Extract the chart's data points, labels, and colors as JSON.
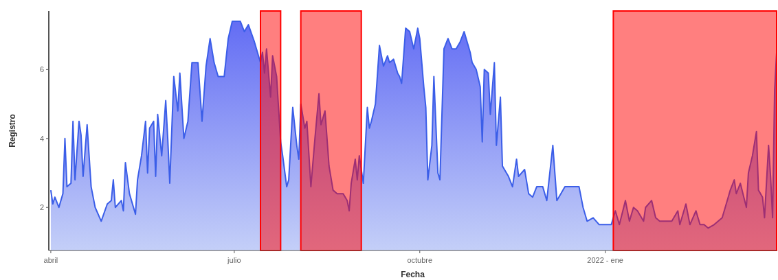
{
  "chart_data": {
    "type": "area",
    "xlabel": "Fecha",
    "ylabel": "Registro",
    "xlim": [
      "2021-03-31",
      "2022-03-27"
    ],
    "xticks": [
      {
        "value": "2021-04-01",
        "label": "abril"
      },
      {
        "value": "2021-07-01",
        "label": "julio"
      },
      {
        "value": "2021-10-01",
        "label": "octubre"
      },
      {
        "value": "2022-01-01",
        "label": "2022 - ene"
      }
    ],
    "ylim": [
      0.75,
      7.7
    ],
    "yticks": [
      2,
      4,
      6
    ],
    "grid": false,
    "bands": [
      {
        "axis": "x",
        "from": "2021-07-14",
        "to": "2021-07-24",
        "color": "#ff0000"
      },
      {
        "axis": "x",
        "from": "2021-08-03",
        "to": "2021-09-02",
        "color": "#ff0000"
      },
      {
        "axis": "x",
        "from": "2022-01-05",
        "to": "2022-03-27",
        "color": "#ff0000"
      }
    ],
    "series": [
      {
        "color": "#3b5ee8",
        "x": [
          "2021-04-01",
          "2021-04-02",
          "2021-04-03",
          "2021-04-05",
          "2021-04-07",
          "2021-04-08",
          "2021-04-09",
          "2021-04-11",
          "2021-04-12",
          "2021-04-13",
          "2021-04-15",
          "2021-04-16",
          "2021-04-17",
          "2021-04-19",
          "2021-04-21",
          "2021-04-23",
          "2021-04-26",
          "2021-04-29",
          "2021-05-01",
          "2021-05-02",
          "2021-05-03",
          "2021-05-06",
          "2021-05-07",
          "2021-05-08",
          "2021-05-10",
          "2021-05-13",
          "2021-05-14",
          "2021-05-16",
          "2021-05-18",
          "2021-05-19",
          "2021-05-20",
          "2021-05-22",
          "2021-05-23",
          "2021-05-24",
          "2021-05-26",
          "2021-05-28",
          "2021-05-29",
          "2021-05-30",
          "2021-06-01",
          "2021-06-03",
          "2021-06-04",
          "2021-06-06",
          "2021-06-08",
          "2021-06-10",
          "2021-06-13",
          "2021-06-15",
          "2021-06-17",
          "2021-06-19",
          "2021-06-21",
          "2021-06-23",
          "2021-06-26",
          "2021-06-28",
          "2021-06-30",
          "2021-07-04",
          "2021-07-06",
          "2021-07-08",
          "2021-07-11",
          "2021-07-14",
          "2021-07-15",
          "2021-07-16",
          "2021-07-17",
          "2021-07-19",
          "2021-07-20",
          "2021-07-22",
          "2021-07-24",
          "2021-07-25",
          "2021-07-27",
          "2021-07-28",
          "2021-07-30",
          "2021-08-01",
          "2021-08-02",
          "2021-08-03",
          "2021-08-05",
          "2021-08-06",
          "2021-08-08",
          "2021-08-10",
          "2021-08-12",
          "2021-08-13",
          "2021-08-15",
          "2021-08-17",
          "2021-08-19",
          "2021-08-21",
          "2021-08-24",
          "2021-08-26",
          "2021-08-27",
          "2021-08-28",
          "2021-08-30",
          "2021-08-31",
          "2021-09-01",
          "2021-09-03",
          "2021-09-05",
          "2021-09-06",
          "2021-09-07",
          "2021-09-09",
          "2021-09-11",
          "2021-09-13",
          "2021-09-15",
          "2021-09-16",
          "2021-09-18",
          "2021-09-20",
          "2021-09-21",
          "2021-09-22",
          "2021-09-24",
          "2021-09-26",
          "2021-09-28",
          "2021-09-30",
          "2021-10-01",
          "2021-10-03",
          "2021-10-04",
          "2021-10-05",
          "2021-10-07",
          "2021-10-08",
          "2021-10-10",
          "2021-10-11",
          "2021-10-13",
          "2021-10-15",
          "2021-10-17",
          "2021-10-19",
          "2021-10-21",
          "2021-10-23",
          "2021-10-26",
          "2021-10-27",
          "2021-10-29",
          "2021-10-31",
          "2021-11-01",
          "2021-11-02",
          "2021-11-04",
          "2021-11-05",
          "2021-11-07",
          "2021-11-08",
          "2021-11-10",
          "2021-11-11",
          "2021-11-14",
          "2021-11-16",
          "2021-11-18",
          "2021-11-19",
          "2021-11-22",
          "2021-11-24",
          "2021-11-26",
          "2021-11-28",
          "2021-12-01",
          "2021-12-03",
          "2021-12-06",
          "2021-12-08",
          "2021-12-10",
          "2021-12-12",
          "2021-12-15",
          "2021-12-19",
          "2021-12-21",
          "2021-12-23",
          "2021-12-26",
          "2021-12-29",
          "2022-01-01",
          "2022-01-04",
          "2022-01-06",
          "2022-01-08",
          "2022-01-11",
          "2022-01-13",
          "2022-01-15",
          "2022-01-17",
          "2022-01-20",
          "2022-01-21",
          "2022-01-24",
          "2022-01-26",
          "2022-01-28",
          "2022-02-01",
          "2022-02-03",
          "2022-02-06",
          "2022-02-07",
          "2022-02-10",
          "2022-02-12",
          "2022-02-15",
          "2022-02-17",
          "2022-02-19",
          "2022-02-21",
          "2022-02-24",
          "2022-02-28",
          "2022-03-03",
          "2022-03-04",
          "2022-03-06",
          "2022-03-07",
          "2022-03-09",
          "2022-03-12",
          "2022-03-13",
          "2022-03-15",
          "2022-03-17",
          "2022-03-18",
          "2022-03-20",
          "2022-03-21",
          "2022-03-23",
          "2022-03-24",
          "2022-03-25",
          "2022-03-26",
          "2022-03-27"
        ],
        "values": [
          2.5,
          2.1,
          2.3,
          2.0,
          2.4,
          4.0,
          2.6,
          2.7,
          4.5,
          2.8,
          4.5,
          4.1,
          2.9,
          4.4,
          2.6,
          2.0,
          1.6,
          2.1,
          2.2,
          2.8,
          2.0,
          2.2,
          1.9,
          3.3,
          2.4,
          1.8,
          2.8,
          3.5,
          4.5,
          3.0,
          4.3,
          4.5,
          2.9,
          4.7,
          3.5,
          5.1,
          4.0,
          2.7,
          5.8,
          4.8,
          5.9,
          4.0,
          4.5,
          6.2,
          6.2,
          4.5,
          6.1,
          6.9,
          6.2,
          5.8,
          5.8,
          6.9,
          7.4,
          7.4,
          7.1,
          7.3,
          6.8,
          6.2,
          6.5,
          5.9,
          6.6,
          5.2,
          6.4,
          5.8,
          3.9,
          3.5,
          2.6,
          2.8,
          4.9,
          3.8,
          3.4,
          5.0,
          4.3,
          4.5,
          2.6,
          4.0,
          5.3,
          4.4,
          4.8,
          3.2,
          2.5,
          2.4,
          2.4,
          2.2,
          1.9,
          2.7,
          3.4,
          2.8,
          3.5,
          2.7,
          4.9,
          4.3,
          4.5,
          5.0,
          6.7,
          6.1,
          6.4,
          6.2,
          6.3,
          5.9,
          5.8,
          5.6,
          7.2,
          7.1,
          6.6,
          7.2,
          6.9,
          5.5,
          4.9,
          2.8,
          3.8,
          5.8,
          3.0,
          2.8,
          6.6,
          6.9,
          6.6,
          6.6,
          6.8,
          7.1,
          6.5,
          6.2,
          6.0,
          5.5,
          3.9,
          6.0,
          5.9,
          4.7,
          6.2,
          3.8,
          5.2,
          3.2,
          2.9,
          2.6,
          3.4,
          2.9,
          3.1,
          2.4,
          2.3,
          2.6,
          2.6,
          2.2,
          3.8,
          2.2,
          2.4,
          2.6,
          2.6,
          2.6,
          2.0,
          1.6,
          1.7,
          1.5,
          1.5,
          1.5,
          1.9,
          1.5,
          2.2,
          1.6,
          2.0,
          1.9,
          1.6,
          2.0,
          2.2,
          1.7,
          1.6,
          1.6,
          1.6,
          1.9,
          1.5,
          2.1,
          1.5,
          1.9,
          1.5,
          1.5,
          1.4,
          1.5,
          1.7,
          2.3,
          2.5,
          2.8,
          2.4,
          2.7,
          2.0,
          3.0,
          3.5,
          4.2,
          2.5,
          2.3,
          1.7,
          3.8,
          2.9,
          1.7,
          5.4,
          6.5
        ]
      }
    ]
  }
}
